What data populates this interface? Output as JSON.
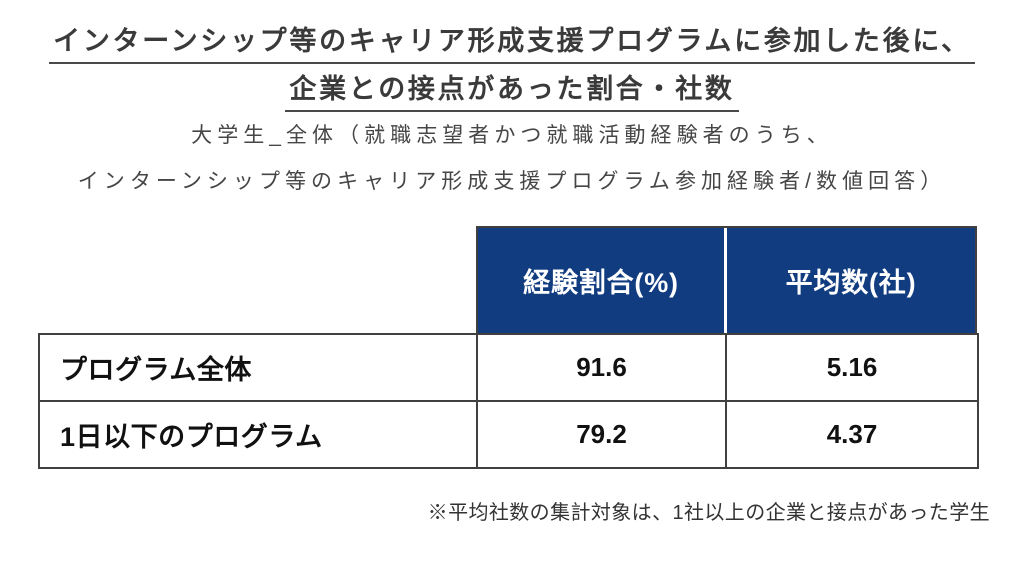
{
  "page": {
    "title_line1": "インターンシップ等のキャリア形成支援プログラムに参加した後に、",
    "title_line2": "企業との接点があった割合・社数",
    "subtitle_line1": "大学生_全体（就職志望者かつ就職活動経験者のうち、",
    "subtitle_line2": "インターンシップ等のキャリア形成支援プログラム参加経験者/数値回答）",
    "footnote": "※平均社数の集計対象は、1社以上の企業と接点があった学生"
  },
  "colors": {
    "header_bg": "#113c80",
    "header_text": "#ffffff",
    "border": "#404040",
    "title_text": "#3a3a3a",
    "body_text": "#111111"
  },
  "chart_data": {
    "type": "table",
    "title": "インターンシップ等のキャリア形成支援プログラムに参加した後に、企業との接点があった割合・社数",
    "subtitle": "大学生_全体（就職志望者かつ就職活動経験者のうち、インターンシップ等のキャリア形成支援プログラム参加経験者/数値回答）",
    "columns": [
      "",
      "経験割合(%)",
      "平均数(社)"
    ],
    "rows": [
      {
        "label": "プログラム全体",
        "values": [
          "91.6",
          "5.16"
        ]
      },
      {
        "label": "1日以下のプログラム",
        "values": [
          "79.2",
          "4.37"
        ]
      }
    ],
    "footnote": "※平均社数の集計対象は、1社以上の企業と接点があった学生"
  }
}
